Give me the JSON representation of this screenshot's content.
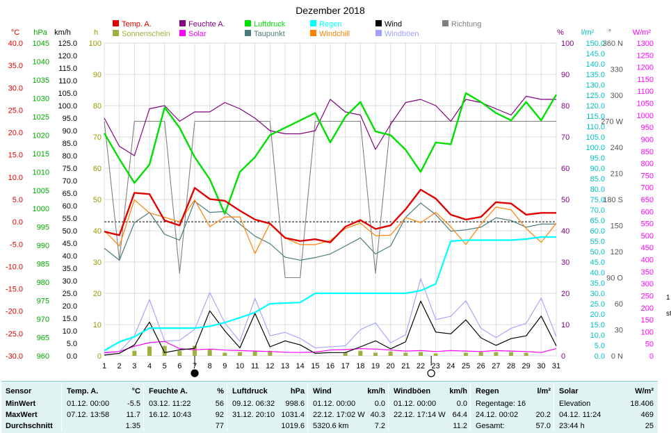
{
  "title": "Dezember 2018",
  "chart_data": {
    "type": "line",
    "title": "Dezember 2018",
    "x": [
      1,
      2,
      3,
      4,
      5,
      6,
      7,
      8,
      9,
      10,
      11,
      12,
      13,
      14,
      15,
      16,
      17,
      18,
      19,
      20,
      21,
      22,
      23,
      24,
      25,
      26,
      27,
      28,
      29,
      30,
      31
    ],
    "xlim": [
      1,
      31
    ],
    "axes": {
      "temp_c": {
        "label": "°C",
        "range": [
          -30,
          40
        ],
        "color": "#ff0000"
      },
      "pressure_hpa": {
        "label": "hPa",
        "range": [
          960,
          1045
        ],
        "color": "#00aa00"
      },
      "wind_kmh": {
        "label": "km/h",
        "range": [
          0,
          125
        ],
        "color": "#000000"
      },
      "sunshine_h": {
        "label": "h",
        "range": [
          0,
          100
        ],
        "color": "#999900"
      },
      "humidity_pct": {
        "label": "%",
        "range": [
          0,
          100
        ],
        "color": "#800080"
      },
      "rain_lm2": {
        "label": "l/m²",
        "range": [
          0,
          150
        ],
        "color": "#00c0c0"
      },
      "direction_deg": {
        "label": "°",
        "range": [
          0,
          360
        ],
        "color": "#555555"
      },
      "solar_wm2": {
        "label": "W/m²",
        "range": [
          0,
          1300
        ],
        "color": "#ff00ff"
      }
    },
    "legend": [
      {
        "name": "Temp. A.",
        "color": "#e00000"
      },
      {
        "name": "Feuchte A.",
        "color": "#800080"
      },
      {
        "name": "Luftdruck",
        "color": "#00e000"
      },
      {
        "name": "Regen",
        "color": "#00ffff"
      },
      {
        "name": "Wind",
        "color": "#000000"
      },
      {
        "name": "Richtung",
        "color": "#808080"
      },
      {
        "name": "Sonnenschein",
        "color": "#a0b040"
      },
      {
        "name": "Solar",
        "color": "#ff00ff"
      },
      {
        "name": "Taupunkt",
        "color": "#4a7b7b"
      },
      {
        "name": "Windchill",
        "color": "#ff8000"
      },
      {
        "name": "Windböen",
        "color": "#a0a0ff"
      }
    ],
    "series": [
      {
        "name": "Temp. A.",
        "axis": "temp_c",
        "color": "#e00000",
        "values": [
          -2.2,
          -3.0,
          6.5,
          6.2,
          0.3,
          -0.8,
          7.6,
          5.1,
          4.7,
          2.5,
          0.5,
          -0.4,
          -3.6,
          -4.3,
          -3.9,
          -4.6,
          -1.1,
          0.4,
          -1.6,
          -0.8,
          2.8,
          7.2,
          5.2,
          1.6,
          0.5,
          1.1,
          4.4,
          4.1,
          1.6,
          2.0,
          2.0
        ]
      },
      {
        "name": "Windchill",
        "axis": "temp_c",
        "color": "#ff8000",
        "values": [
          -2.0,
          -5.4,
          4.9,
          2.0,
          1.0,
          0.0,
          4.9,
          -1.1,
          1.1,
          1.1,
          -7.1,
          -0.4,
          -3.6,
          -5.1,
          -5.1,
          -4.2,
          -1.5,
          -0.3,
          -3.1,
          -3.0,
          1.0,
          -0.2,
          2.1,
          -1.1,
          -5.1,
          -0.5,
          3.3,
          2.7,
          -1.5,
          -4.6,
          -0.3
        ]
      },
      {
        "name": "Taupunkt",
        "axis": "temp_c",
        "color": "#4a7b7b",
        "values": [
          -5.9,
          -8.6,
          -0.2,
          2.1,
          -2.8,
          -4.1,
          4.6,
          2.1,
          2.3,
          -0.5,
          -3.2,
          -4.9,
          -7.9,
          -8.6,
          -8.0,
          -7.2,
          -5.4,
          -3.6,
          -7.2,
          -5.4,
          1.0,
          4.2,
          1.6,
          -2.1,
          -1.8,
          -1.2,
          0.9,
          0.3,
          -1.2,
          -0.5,
          -0.5
        ]
      },
      {
        "name": "Feuchte A.",
        "axis": "humidity_pct",
        "color": "#800080",
        "values": [
          76,
          67,
          64,
          79,
          80,
          75,
          78,
          78,
          81,
          79,
          76,
          72,
          71,
          71,
          72,
          82,
          78,
          77,
          66,
          74,
          81,
          82,
          80,
          75,
          82,
          81,
          79,
          77,
          83,
          82,
          82
        ]
      },
      {
        "name": "Luftdruck",
        "axis": "pressure_hpa",
        "color": "#00e000",
        "values": [
          1020.5,
          1013.5,
          1007,
          1012,
          1027.5,
          1022,
          1014,
          1008,
          998.6,
          1010,
          1014,
          1020,
          1022,
          1024,
          1026,
          1018,
          1025,
          1029,
          1021,
          1020,
          1016,
          1010,
          1018,
          1017.5,
          1031.4,
          1029,
          1026,
          1024,
          1029,
          1024,
          1031
        ]
      },
      {
        "name": "Regen",
        "axis": "rain_lm2",
        "color": "#00ffff",
        "values": [
          2.5,
          6.7,
          9.2,
          13.3,
          13.3,
          13.3,
          13.3,
          14.2,
          16.0,
          18.3,
          20.8,
          25.0,
          25.3,
          25.6,
          30.0,
          30.0,
          30.0,
          30.0,
          30.0,
          30.0,
          30.0,
          31.3,
          34.5,
          55.0,
          55.5,
          55.5,
          55.5,
          55.5,
          56.0,
          57.0,
          57.0
        ]
      },
      {
        "name": "Wind",
        "axis": "wind_kmh",
        "color": "#000000",
        "values": [
          0.3,
          1.0,
          4.4,
          13.5,
          1.3,
          2.4,
          3.0,
          18.0,
          10.0,
          3.2,
          17.0,
          3.6,
          6.0,
          4.4,
          1.0,
          1.3,
          1.3,
          3.6,
          6.0,
          2.8,
          5.6,
          21.9,
          9.5,
          8.8,
          14.4,
          7.2,
          4.2,
          6.9,
          8.0,
          15.9,
          4.0
        ]
      },
      {
        "name": "Windböen",
        "axis": "wind_kmh",
        "color": "#a0a0ff",
        "values": [
          1.5,
          1.7,
          8.0,
          22.5,
          5.9,
          6.2,
          10.6,
          25.3,
          13.2,
          5.8,
          23.0,
          8.0,
          9.4,
          7.0,
          3.2,
          3.6,
          4.0,
          10.5,
          13.2,
          5.2,
          8.4,
          30.9,
          14.5,
          15.8,
          22.0,
          11.0,
          7.3,
          11.0,
          13.0,
          23.1,
          7.7
        ]
      },
      {
        "name": "Richtung",
        "axis": "direction_deg",
        "color": "#808080",
        "values": [
          270,
          110,
          270,
          270,
          270,
          95,
          270,
          270,
          270,
          270,
          270,
          270,
          90,
          90,
          270,
          270,
          270,
          270,
          95,
          270,
          270,
          270,
          270,
          270,
          270,
          270,
          270,
          270,
          270,
          270,
          270
        ]
      },
      {
        "name": "Solar",
        "axis": "solar_wm2",
        "color": "#ff00ff",
        "values": [
          12,
          18,
          40,
          55,
          60,
          30,
          25,
          28,
          24,
          22,
          20,
          18,
          15,
          14,
          16,
          24,
          26,
          30,
          28,
          24,
          20,
          22,
          18,
          22,
          20,
          18,
          22,
          20,
          18,
          14,
          30
        ]
      },
      {
        "name": "Sonnenschein",
        "axis": "sunshine_h",
        "type": "bar",
        "color": "#a0b040",
        "values": [
          0,
          0,
          1.6,
          3.0,
          3.2,
          1.6,
          3.2,
          2.2,
          1.0,
          1.2,
          1.6,
          1.6,
          0,
          0,
          0,
          0,
          1.0,
          1.6,
          1.0,
          1.4,
          1.0,
          1.2,
          0.8,
          0,
          1.0,
          1.2,
          1.2,
          1.2,
          1.0,
          0,
          0
        ]
      }
    ],
    "reference_lines": [
      {
        "axis": "temp_c",
        "value": 0,
        "style": "dashed"
      }
    ],
    "moon_phases": [
      {
        "day": 7,
        "phase": "new"
      },
      {
        "day": 22.7,
        "phase": "full"
      }
    ]
  },
  "stats": {
    "row_labels": [
      "Sensor",
      "MinWert",
      "MaxWert",
      "Durchschnitt"
    ],
    "columns": [
      {
        "header": "Temp. A.",
        "unit": "°C",
        "rows": [
          [
            "01.12.  00:00",
            "-5.5"
          ],
          [
            "07.12.  13:58",
            "11.7"
          ],
          [
            "",
            "1.35"
          ]
        ]
      },
      {
        "header": "Feuchte A.",
        "unit": "%",
        "rows": [
          [
            "03.12.  11:22",
            "56"
          ],
          [
            "16.12.  10:43",
            "92"
          ],
          [
            "",
            "77"
          ]
        ]
      },
      {
        "header": "Luftdruck",
        "unit": "hPa",
        "rows": [
          [
            "09.12.  06:32",
            "998.6"
          ],
          [
            "31.12.  20:10",
            "1031.4"
          ],
          [
            "",
            "1019.6"
          ]
        ]
      },
      {
        "header": "Wind",
        "unit": "km/h",
        "rows": [
          [
            "01.12.  00:00",
            "0.0"
          ],
          [
            "22.12.  17:02  W",
            "40.3"
          ],
          [
            "5320.6 km",
            "7.2"
          ]
        ]
      },
      {
        "header": "Windböen",
        "unit": "km/h",
        "rows": [
          [
            "01.12.  00:00",
            "0.0"
          ],
          [
            "22.12.  17:14  W",
            "64.4"
          ],
          [
            "",
            "11.2"
          ]
        ]
      },
      {
        "header": "Regen",
        "unit": "l/m²",
        "rows": [
          [
            "Regentage: 16",
            ""
          ],
          [
            "24.12.  00:02",
            "20.2"
          ],
          [
            "Gesamt:",
            "57.0"
          ]
        ]
      },
      {
        "header": "Solar",
        "unit": "W/m²",
        "rows": [
          [
            "Elevation",
            "18.406"
          ],
          [
            "04.12.  11:24",
            "469"
          ],
          [
            "23:44 h",
            "25"
          ]
        ]
      }
    ]
  },
  "edge_marks": [
    "1",
    "st"
  ]
}
